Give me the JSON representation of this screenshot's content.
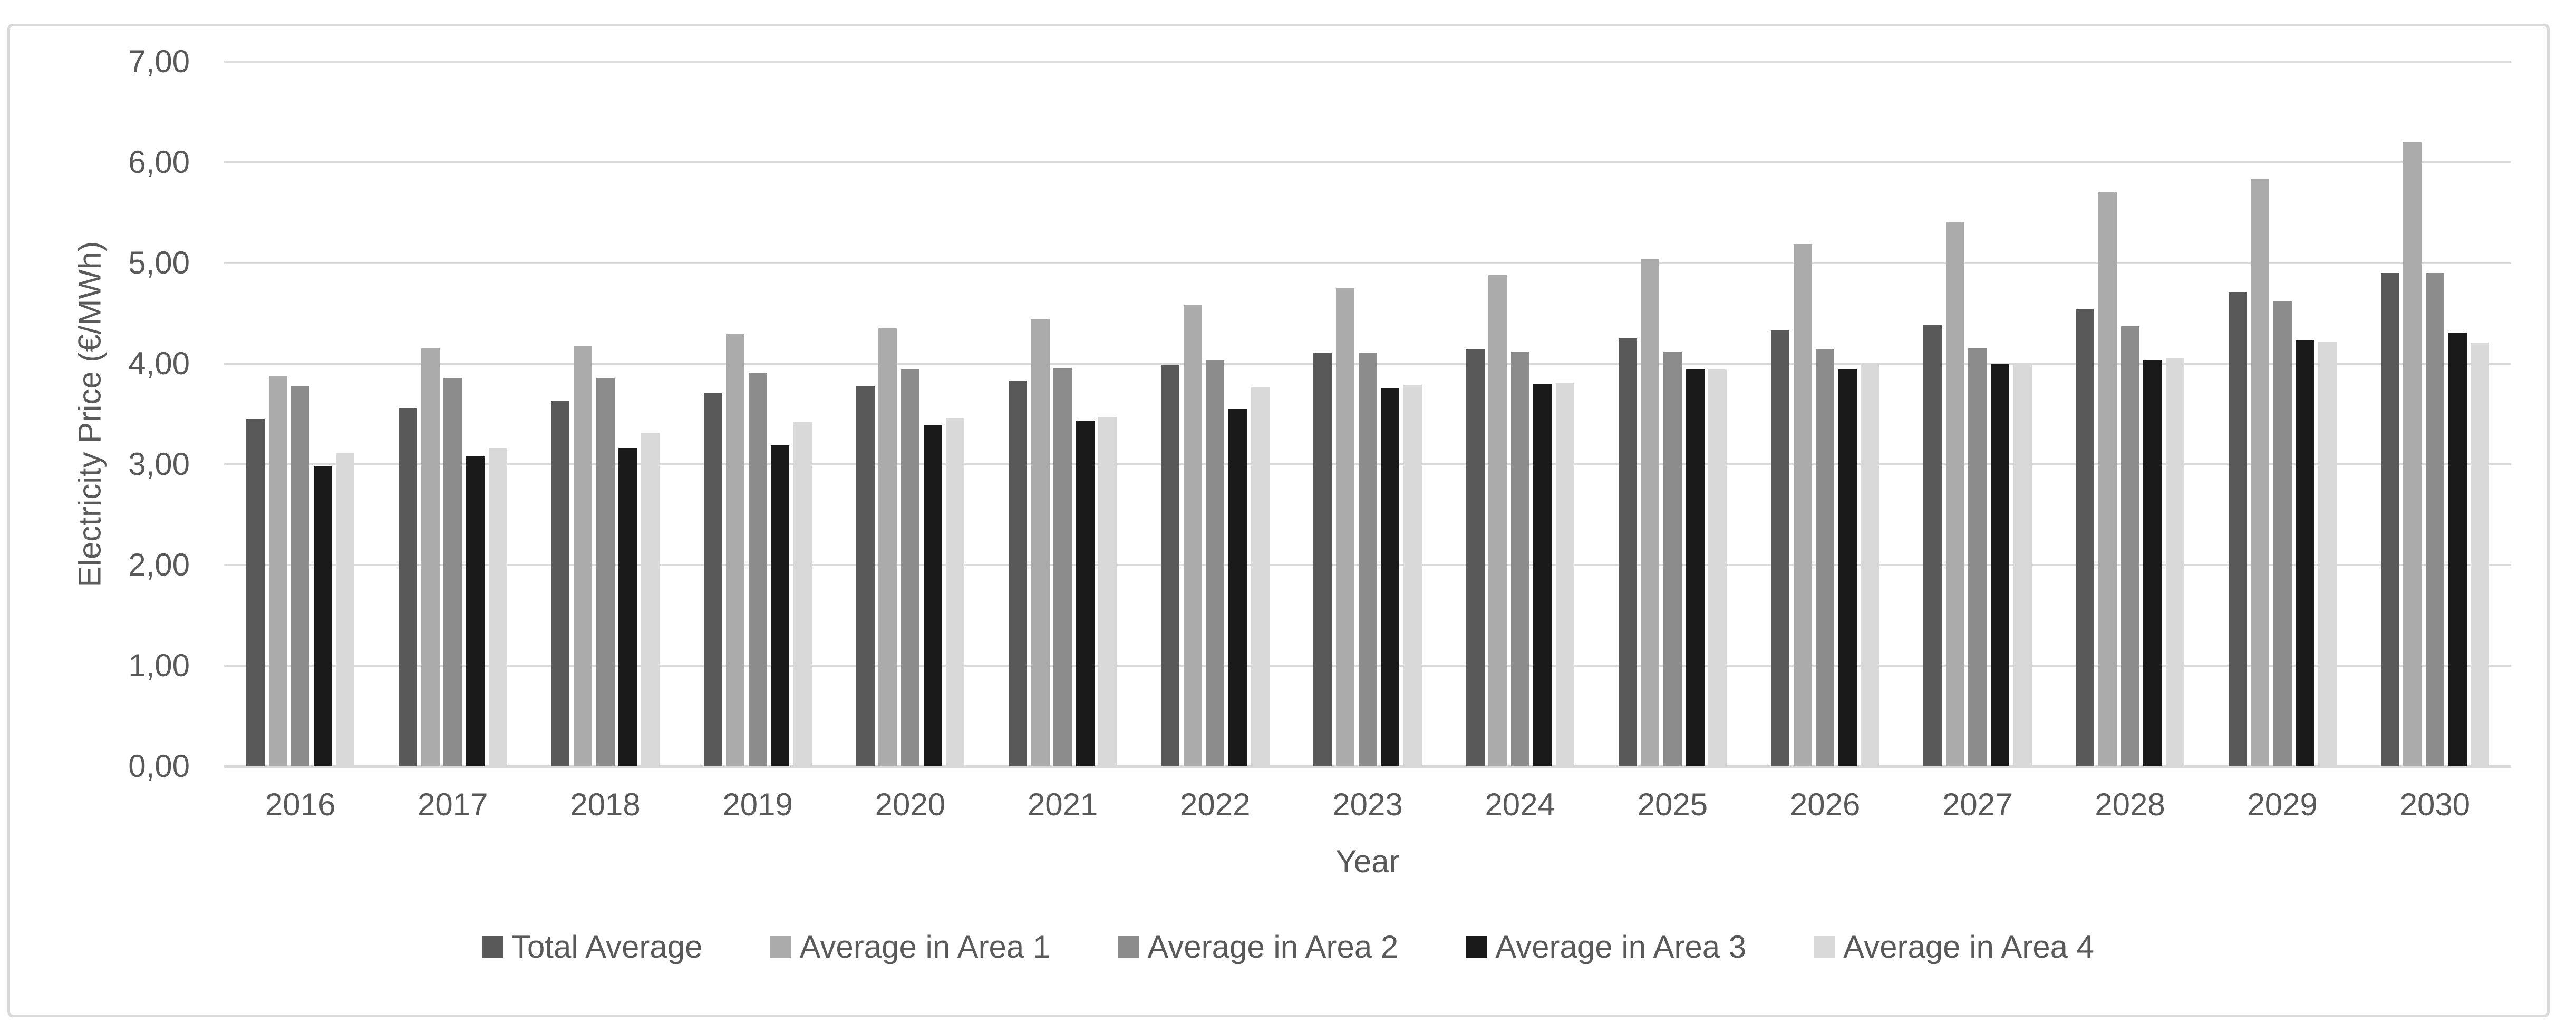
{
  "chart_data": {
    "type": "bar",
    "title": "",
    "xlabel": "Year",
    "ylabel": "Electricity Price (€/MWh)",
    "ylim": [
      0,
      7
    ],
    "y_ticks": [
      "0,00",
      "1,00",
      "2,00",
      "3,00",
      "4,00",
      "5,00",
      "6,00",
      "7,00"
    ],
    "grid": "horizontal-only",
    "grid_color": "#d9d9d9",
    "frame_color": "#d9d9d9",
    "text_color": "#595959",
    "legend_position": "bottom",
    "categories": [
      "2016",
      "2017",
      "2018",
      "2019",
      "2020",
      "2021",
      "2022",
      "2023",
      "2024",
      "2025",
      "2026",
      "2027",
      "2028",
      "2029",
      "2030"
    ],
    "series": [
      {
        "name": "Total Average",
        "color": "#595959",
        "values": [
          3.45,
          3.56,
          3.63,
          3.71,
          3.78,
          3.83,
          3.99,
          4.11,
          4.14,
          4.25,
          4.33,
          4.38,
          4.54,
          4.71,
          4.9
        ]
      },
      {
        "name": "Average in Area 1",
        "color": "#ababab",
        "values": [
          3.88,
          4.15,
          4.18,
          4.3,
          4.35,
          4.44,
          4.58,
          4.75,
          4.88,
          5.04,
          5.19,
          5.41,
          5.7,
          5.83,
          6.2
        ]
      },
      {
        "name": "Average in Area 2",
        "color": "#8c8c8c",
        "values": [
          3.78,
          3.86,
          3.86,
          3.91,
          3.94,
          3.96,
          4.03,
          4.11,
          4.12,
          4.12,
          4.14,
          4.15,
          4.37,
          4.62,
          4.9
        ]
      },
      {
        "name": "Average in Area 3",
        "color": "#1a1a1a",
        "values": [
          2.98,
          3.08,
          3.16,
          3.19,
          3.39,
          3.43,
          3.55,
          3.76,
          3.8,
          3.94,
          3.95,
          4.0,
          4.03,
          4.23,
          4.31
        ]
      },
      {
        "name": "Average in Area 4",
        "color": "#d9d9d9",
        "values": [
          3.11,
          3.16,
          3.31,
          3.42,
          3.46,
          3.47,
          3.77,
          3.79,
          3.81,
          3.94,
          3.99,
          4.0,
          4.05,
          4.22,
          4.21
        ]
      }
    ]
  }
}
